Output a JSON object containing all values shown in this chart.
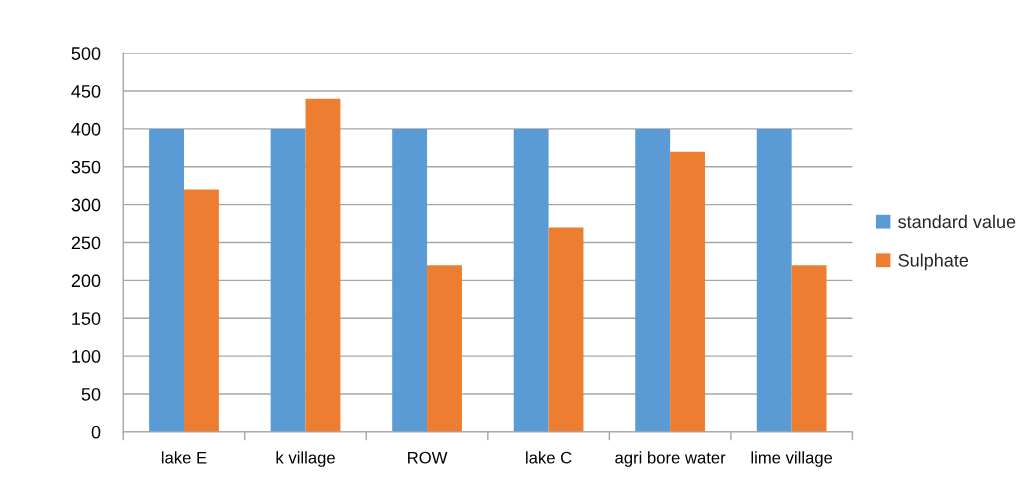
{
  "chart_data": {
    "type": "bar",
    "categories": [
      "lake E",
      "k village",
      "ROW",
      "lake C",
      "agri bore water",
      "lime village"
    ],
    "series": [
      {
        "name": "standard value",
        "color": "#5b9bd5",
        "values": [
          400,
          400,
          400,
          400,
          400,
          400
        ]
      },
      {
        "name": "Sulphate",
        "color": "#ed7d31",
        "values": [
          320,
          440,
          220,
          270,
          370,
          220
        ]
      }
    ],
    "ylim": [
      0,
      500
    ],
    "yticks": [
      0,
      50,
      100,
      150,
      200,
      250,
      300,
      350,
      400,
      450,
      500
    ],
    "grid": "y",
    "legend": "right"
  }
}
